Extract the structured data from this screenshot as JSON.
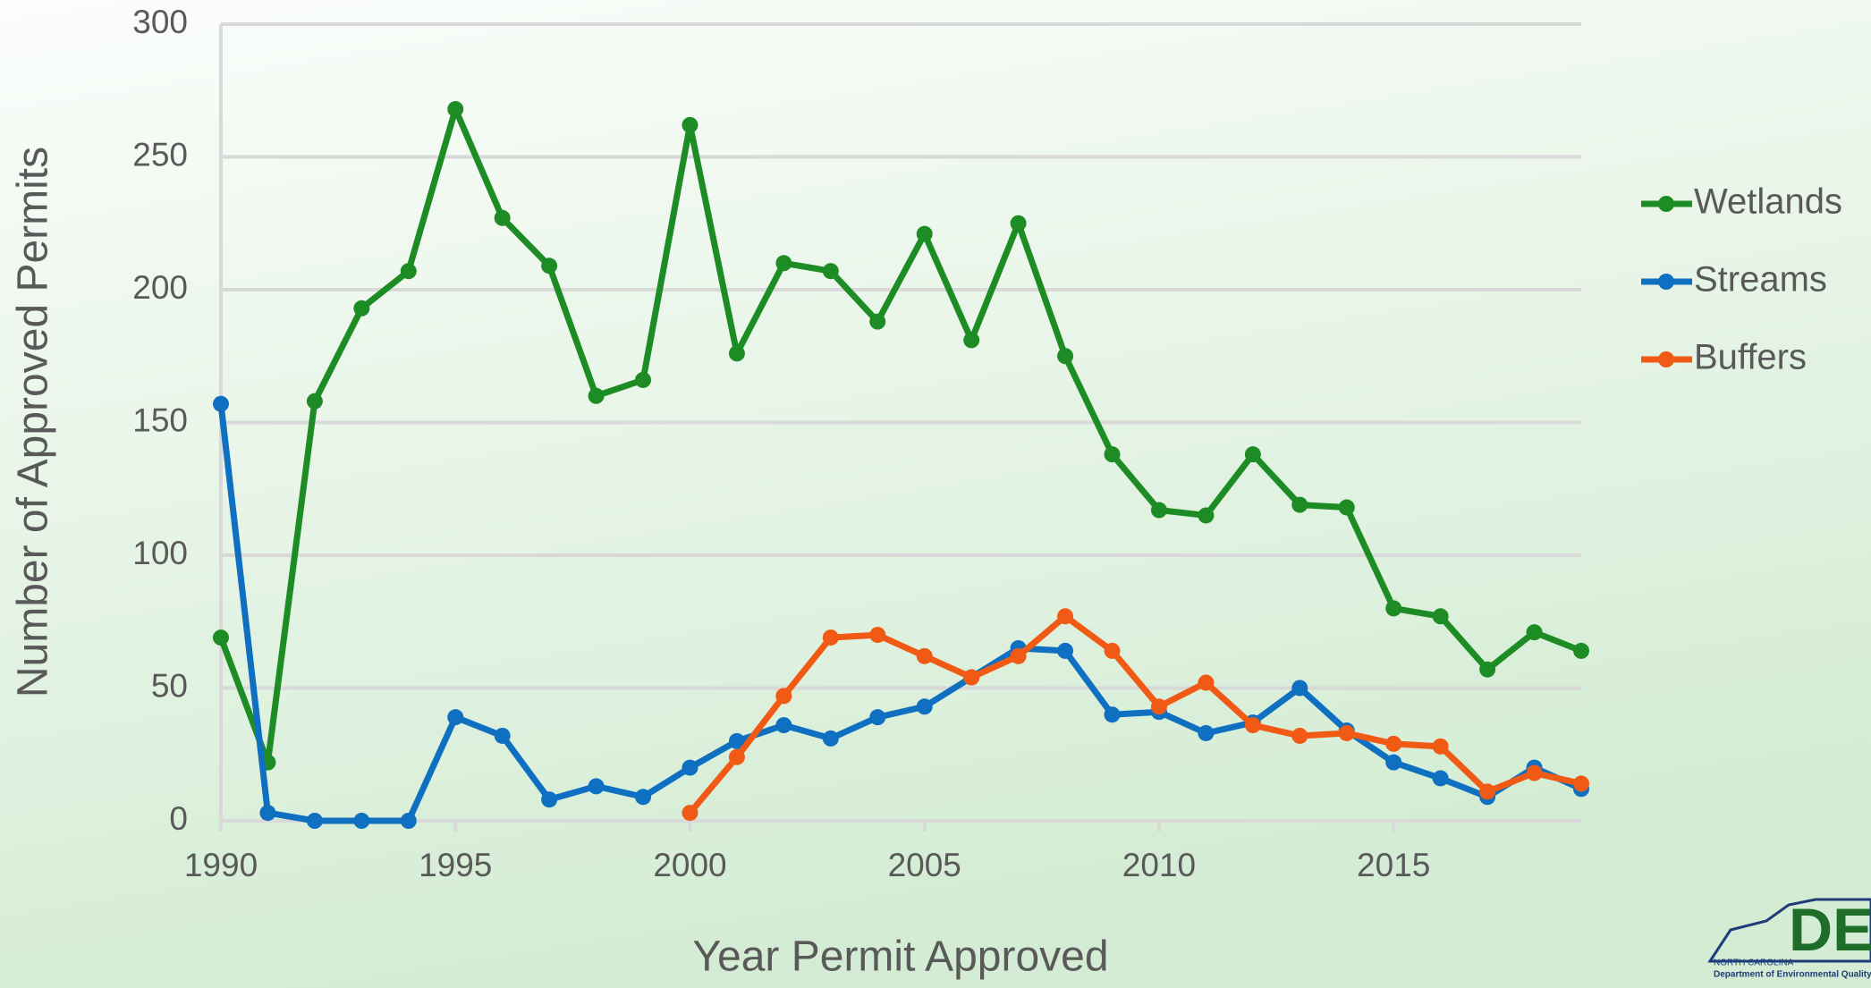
{
  "chart_data": {
    "type": "line",
    "x_label": "Year Permit Approved",
    "y_label": "Number of Approved Permits",
    "x": [
      1990,
      1991,
      1992,
      1993,
      1994,
      1995,
      1996,
      1997,
      1998,
      1999,
      2000,
      2001,
      2002,
      2003,
      2004,
      2005,
      2006,
      2007,
      2008,
      2009,
      2010,
      2011,
      2012,
      2013,
      2014,
      2015,
      2016,
      2017,
      2018,
      2019
    ],
    "series": [
      {
        "name": "Wetlands",
        "color": "#1e8c24",
        "values": [
          69,
          22,
          158,
          193,
          207,
          268,
          227,
          209,
          160,
          166,
          262,
          176,
          210,
          207,
          188,
          221,
          181,
          225,
          175,
          138,
          117,
          115,
          138,
          119,
          118,
          80,
          77,
          57,
          71,
          64
        ]
      },
      {
        "name": "Streams",
        "color": "#0f6fc0",
        "values": [
          157,
          3,
          0,
          0,
          0,
          39,
          32,
          8,
          13,
          9,
          20,
          30,
          36,
          31,
          39,
          43,
          54,
          65,
          64,
          40,
          41,
          33,
          37,
          50,
          34,
          22,
          16,
          9,
          20,
          12
        ]
      },
      {
        "name": "Buffers",
        "color": "#f05a14",
        "values": [
          null,
          null,
          null,
          null,
          null,
          null,
          null,
          null,
          null,
          null,
          3,
          24,
          47,
          69,
          70,
          62,
          54,
          62,
          77,
          64,
          43,
          52,
          36,
          32,
          33,
          29,
          28,
          11,
          18,
          14
        ]
      }
    ],
    "xlim": [
      1990,
      2019
    ],
    "xticks": [
      1990,
      1995,
      2000,
      2005,
      2010,
      2015
    ],
    "ylim": [
      0,
      300
    ],
    "yticks": [
      0,
      50,
      100,
      150,
      200,
      250,
      300
    ],
    "grid": true,
    "legend": "right"
  },
  "logo": {
    "mark": "DE",
    "line1": "NORTH CAROLINA",
    "line2": "Department of Environmental Quality"
  }
}
